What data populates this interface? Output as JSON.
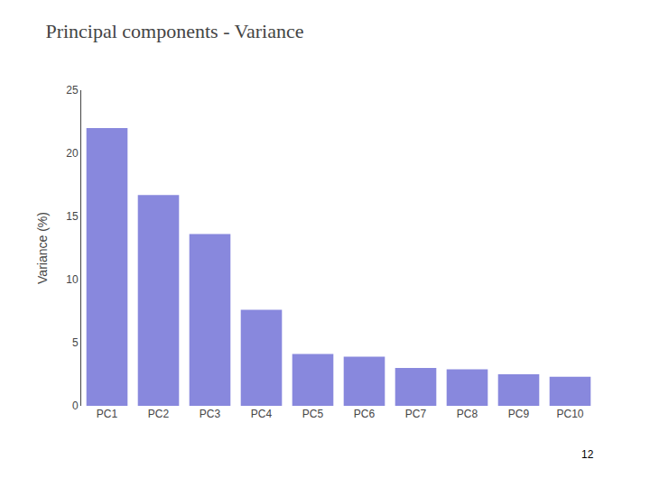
{
  "chart_data": {
    "type": "bar",
    "title": "Principal components - Variance",
    "categories": [
      "PC1",
      "PC2",
      "PC3",
      "PC4",
      "PC5",
      "PC6",
      "PC7",
      "PC8",
      "PC9",
      "PC10"
    ],
    "values": [
      22.0,
      16.7,
      13.6,
      7.6,
      4.1,
      3.9,
      3.0,
      2.9,
      2.5,
      2.3
    ],
    "color": "#8888dd",
    "ylabel": "Variance (%)",
    "ylim": [
      0,
      25
    ],
    "yticks": [
      0,
      5,
      10,
      15,
      20,
      25
    ],
    "grid": false,
    "annotations": [
      "12"
    ]
  }
}
